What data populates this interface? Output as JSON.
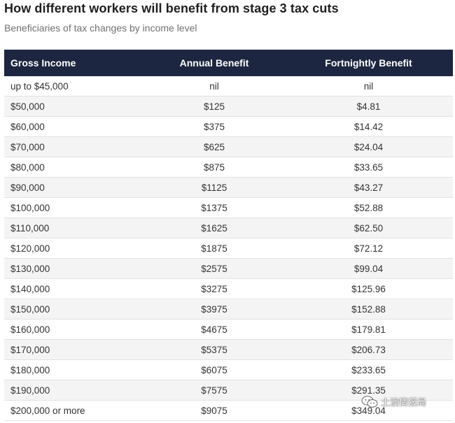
{
  "title": "How different workers will benefit from stage 3 tax cuts",
  "subtitle": "Beneficiaries of tax changes by income level",
  "watermark": "土澳情报局",
  "colors": {
    "header_bg": "#1d2640",
    "header_text": "#ffffff",
    "stripe": "#f4f4f4"
  },
  "chart_data": {
    "type": "table",
    "columns": [
      "Gross Income",
      "Annual Benefit",
      "Fortnightly Benefit"
    ],
    "rows": [
      [
        "up to $45,000",
        "nil",
        "nil"
      ],
      [
        "$50,000",
        "$125",
        "$4.81"
      ],
      [
        "$60,000",
        "$375",
        "$14.42"
      ],
      [
        "$70,000",
        "$625",
        "$24.04"
      ],
      [
        "$80,000",
        "$875",
        "$33.65"
      ],
      [
        "$90,000",
        "$1125",
        "$43.27"
      ],
      [
        "$100,000",
        "$1375",
        "$52.88"
      ],
      [
        "$110,000",
        "$1625",
        "$62.50"
      ],
      [
        "$120,000",
        "$1875",
        "$72.12"
      ],
      [
        "$130,000",
        "$2575",
        "$99.04"
      ],
      [
        "$140,000",
        "$3275",
        "$125.96"
      ],
      [
        "$150,000",
        "$3975",
        "$152.88"
      ],
      [
        "$160,000",
        "$4675",
        "$179.81"
      ],
      [
        "$170,000",
        "$5375",
        "$206.73"
      ],
      [
        "$180,000",
        "$6075",
        "$233.65"
      ],
      [
        "$190,000",
        "$7575",
        "$291.35"
      ],
      [
        "$200,000 or more",
        "$9075",
        "$349.04"
      ]
    ]
  }
}
